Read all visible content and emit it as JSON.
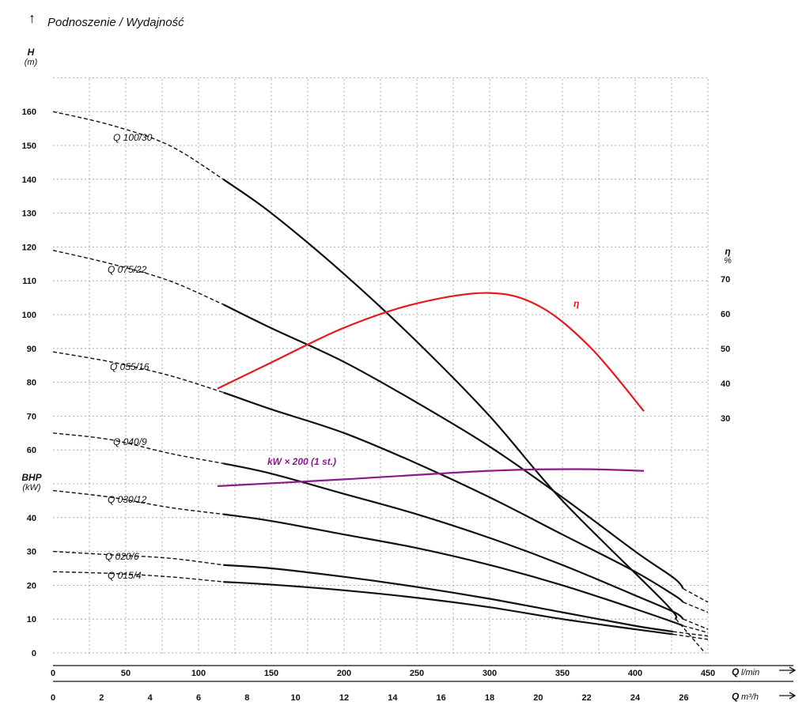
{
  "header": {
    "title": "Podnoszenie / Wydajność"
  },
  "chart_data": {
    "type": "line",
    "axes": {
      "y_left": {
        "label": "H",
        "unit": "(m)",
        "ticks": [
          "0",
          "10",
          "20",
          "30",
          "40",
          "50",
          "60",
          "70",
          "80",
          "90",
          "100",
          "110",
          "120",
          "130",
          "140",
          "150",
          "160"
        ]
      },
      "y_left_secondary": {
        "label": "BHP",
        "unit": "(kW)"
      },
      "y_right": {
        "label": "η",
        "unit": "%",
        "ticks": [
          "30",
          "40",
          "50",
          "60",
          "70"
        ]
      },
      "x_primary": {
        "label": "Q",
        "unit": "l/min",
        "ticks": [
          "0",
          "50",
          "100",
          "150",
          "200",
          "250",
          "300",
          "350",
          "400",
          "450"
        ],
        "range": [
          0,
          450
        ]
      },
      "x_secondary": {
        "label": "Q",
        "unit": "m³/h",
        "ticks": [
          "0",
          "2",
          "4",
          "6",
          "8",
          "10",
          "12",
          "14",
          "16",
          "18",
          "20",
          "22",
          "24",
          "26"
        ],
        "range": [
          0,
          27
        ]
      },
      "ylim": [
        0,
        170
      ],
      "grid": true
    },
    "series": [
      {
        "name": "Q 100/30",
        "label": "Q 100/30",
        "color": "#111111",
        "dashed": [
          [
            0,
            160
          ],
          [
            40,
            156
          ],
          [
            80,
            150
          ],
          [
            117,
            140
          ]
        ],
        "solid": [
          [
            117,
            140
          ],
          [
            150,
            130
          ],
          [
            200,
            112
          ],
          [
            250,
            92
          ],
          [
            300,
            70
          ],
          [
            350,
            45
          ],
          [
            420,
            15
          ],
          [
            428,
            10
          ]
        ],
        "tail": [
          [
            428,
            10
          ],
          [
            448,
            0
          ]
        ]
      },
      {
        "name": "Q 075/22",
        "label": "Q 075/22",
        "color": "#111111",
        "dashed": [
          [
            0,
            119
          ],
          [
            40,
            115
          ],
          [
            80,
            110
          ],
          [
            117,
            103
          ]
        ],
        "solid": [
          [
            117,
            103
          ],
          [
            150,
            96
          ],
          [
            200,
            86
          ],
          [
            250,
            74
          ],
          [
            300,
            61
          ],
          [
            350,
            46
          ],
          [
            400,
            30
          ],
          [
            427,
            22
          ],
          [
            433,
            19
          ]
        ],
        "tail": [
          [
            433,
            19
          ],
          [
            450,
            15
          ]
        ]
      },
      {
        "name": "Q 055/16",
        "label": "Q 055/16",
        "color": "#111111",
        "dashed": [
          [
            0,
            89
          ],
          [
            40,
            86
          ],
          [
            80,
            82
          ],
          [
            117,
            77
          ]
        ],
        "solid": [
          [
            117,
            77
          ],
          [
            150,
            72
          ],
          [
            200,
            65
          ],
          [
            250,
            56
          ],
          [
            300,
            46
          ],
          [
            350,
            35
          ],
          [
            400,
            24
          ],
          [
            427,
            17
          ],
          [
            433,
            15
          ]
        ],
        "tail": [
          [
            433,
            15
          ],
          [
            450,
            12
          ]
        ]
      },
      {
        "name": "Q 040/9",
        "label": "Q 040/9",
        "color": "#111111",
        "dashed": [
          [
            0,
            65
          ],
          [
            40,
            63
          ],
          [
            80,
            59
          ],
          [
            117,
            56
          ]
        ],
        "solid": [
          [
            117,
            56
          ],
          [
            150,
            53
          ],
          [
            200,
            47
          ],
          [
            250,
            41
          ],
          [
            300,
            34
          ],
          [
            350,
            26
          ],
          [
            400,
            17
          ],
          [
            427,
            12
          ],
          [
            433,
            10
          ]
        ],
        "tail": [
          [
            433,
            10
          ],
          [
            450,
            7
          ]
        ]
      },
      {
        "name": "Q 030/12",
        "label": "Q 030/12",
        "color": "#111111",
        "dashed": [
          [
            0,
            48
          ],
          [
            40,
            46
          ],
          [
            80,
            43
          ],
          [
            117,
            41
          ]
        ],
        "solid": [
          [
            117,
            41
          ],
          [
            150,
            39
          ],
          [
            200,
            35
          ],
          [
            250,
            31
          ],
          [
            300,
            26
          ],
          [
            350,
            20
          ],
          [
            400,
            13
          ],
          [
            427,
            9
          ],
          [
            433,
            8
          ]
        ],
        "tail": [
          [
            433,
            8
          ],
          [
            450,
            6
          ]
        ]
      },
      {
        "name": "Q 020/6",
        "label": "Q 020/6",
        "color": "#111111",
        "dashed": [
          [
            0,
            30
          ],
          [
            40,
            29
          ],
          [
            80,
            28
          ],
          [
            117,
            26
          ]
        ],
        "solid": [
          [
            117,
            26
          ],
          [
            150,
            25
          ],
          [
            200,
            22.5
          ],
          [
            250,
            19.5
          ],
          [
            300,
            16
          ],
          [
            350,
            12
          ],
          [
            400,
            8
          ],
          [
            426,
            6.3
          ]
        ],
        "tail": [
          [
            426,
            6.3
          ],
          [
            450,
            5
          ]
        ]
      },
      {
        "name": "Q 015/4",
        "label": "Q 015/4",
        "color": "#111111",
        "dashed": [
          [
            0,
            24
          ],
          [
            40,
            23.5
          ],
          [
            80,
            22.5
          ],
          [
            117,
            21
          ]
        ],
        "solid": [
          [
            117,
            21
          ],
          [
            150,
            20.2
          ],
          [
            200,
            18.5
          ],
          [
            250,
            16.3
          ],
          [
            300,
            13.5
          ],
          [
            350,
            10
          ],
          [
            400,
            7
          ],
          [
            426,
            5.5
          ]
        ],
        "tail": [
          [
            426,
            5.5
          ],
          [
            450,
            4
          ]
        ]
      },
      {
        "name": "η",
        "label": "η",
        "color": "#e41a1c",
        "axis": "y_right",
        "solid": [
          [
            113,
            38.5
          ],
          [
            150,
            46
          ],
          [
            200,
            56
          ],
          [
            250,
            63
          ],
          [
            300,
            66
          ],
          [
            335,
            62
          ],
          [
            370,
            50
          ],
          [
            406,
            32
          ]
        ]
      },
      {
        "name": "kW × 200 (1 st.)",
        "label": "kW × 200 (1 st.)",
        "color": "#8b1a8b",
        "solid": [
          [
            113,
            50
          ],
          [
            200,
            52
          ],
          [
            300,
            54.5
          ],
          [
            360,
            55
          ],
          [
            406,
            54.5
          ]
        ]
      }
    ]
  }
}
